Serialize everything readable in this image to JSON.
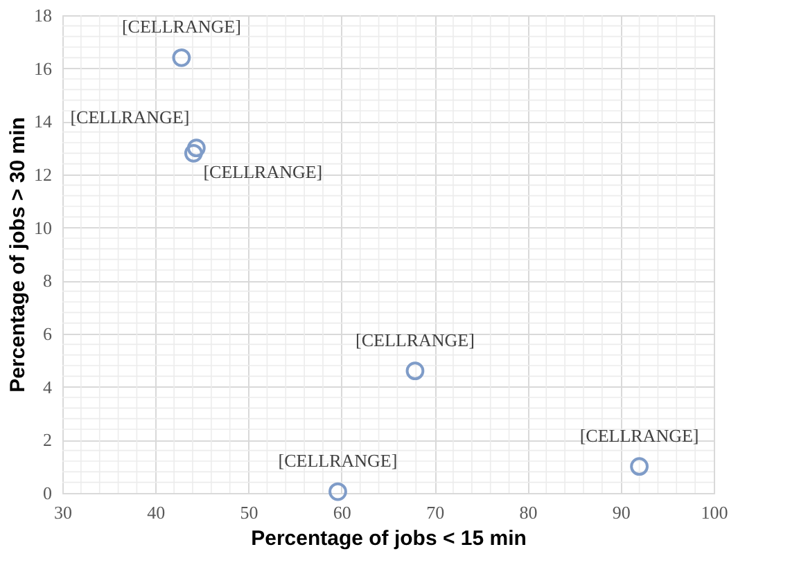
{
  "chart_data": {
    "type": "scatter",
    "xlabel": "Percentage of jobs  < 15 min",
    "ylabel": "Percentage of jobs > 30 min",
    "x": [
      42.8,
      44.4,
      44.1,
      67.9,
      92.0,
      59.6
    ],
    "series": [
      {
        "color": "#7f9cc8",
        "values": [
          16.4,
          13.0,
          12.8,
          4.6,
          1.0,
          0.05
        ]
      }
    ],
    "annotations": [
      {
        "text": "[CELLRANGE]",
        "x": 42.8,
        "y": 16.4
      },
      {
        "text": "[CELLRANGE]",
        "x": 44.4,
        "y": 13.0
      },
      {
        "text": "[CELLRANGE]",
        "x": 44.1,
        "y": 12.8
      },
      {
        "text": "[CELLRANGE]",
        "x": 67.9,
        "y": 4.6
      },
      {
        "text": "[CELLRANGE]",
        "x": 92.0,
        "y": 1.0
      },
      {
        "text": "[CELLRANGE]",
        "x": 59.6,
        "y": 0.05
      }
    ],
    "xlim": [
      30,
      100
    ],
    "xticks": [
      30,
      40,
      50,
      60,
      70,
      80,
      90,
      100
    ],
    "ylim": [
      0,
      18
    ],
    "yticks": [
      0,
      2,
      4,
      6,
      8,
      10,
      12,
      14,
      16,
      18
    ],
    "grid": true,
    "marker": "circle"
  }
}
